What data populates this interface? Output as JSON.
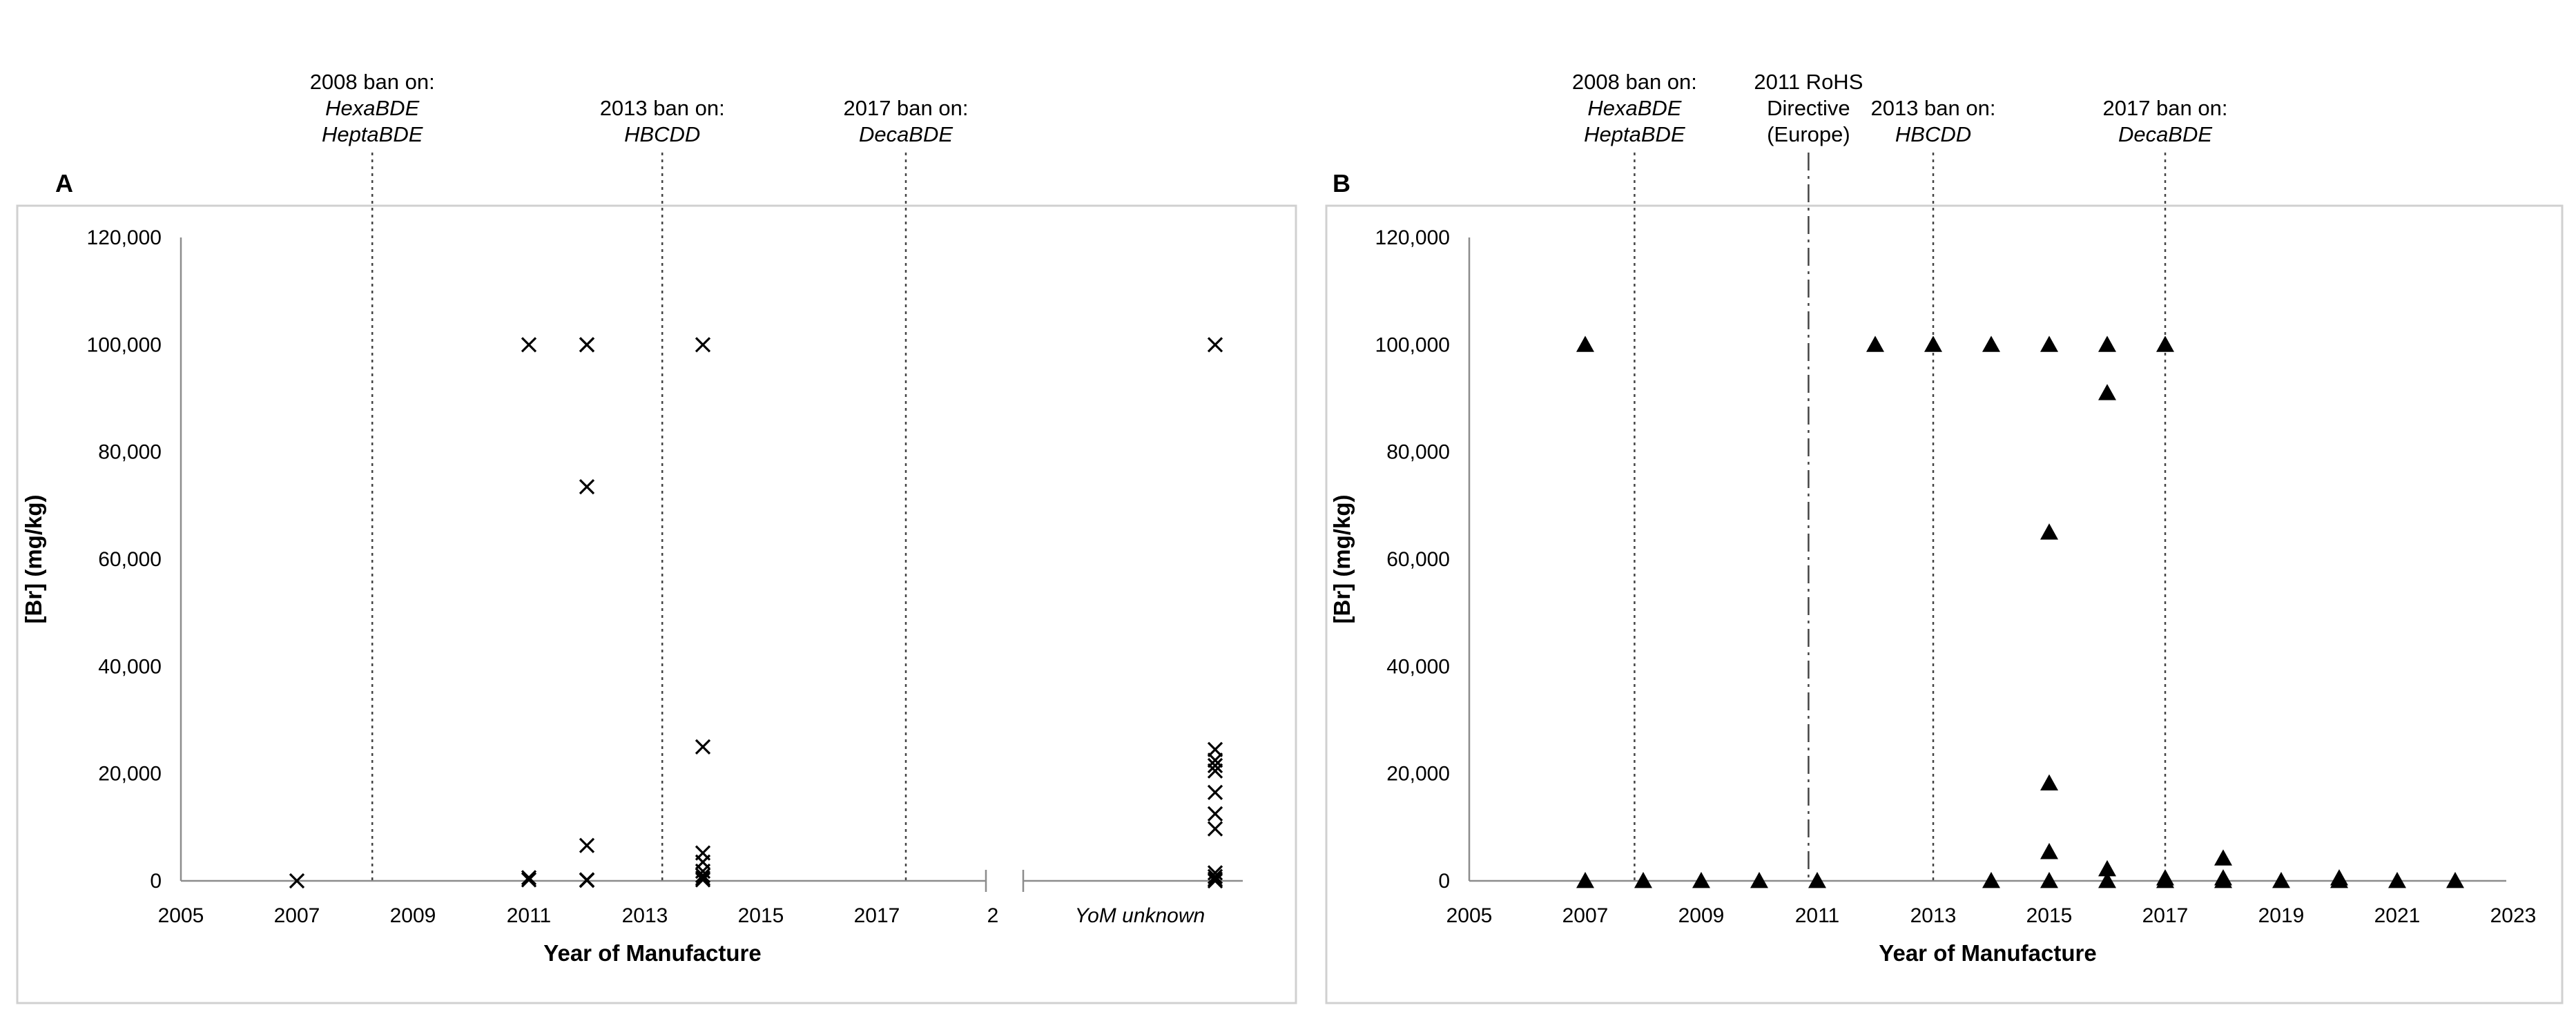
{
  "chart_data": [
    {
      "panel": "A",
      "type": "scatter",
      "xlabel": "Year of Manufacture",
      "ylabel": "[Br] (mg/kg)",
      "xlim": [
        2005,
        2019
      ],
      "ylim": [
        0,
        120000
      ],
      "x_ticks": [
        "2005",
        "2007",
        "2009",
        "2011",
        "2013",
        "2015",
        "2017",
        "2"
      ],
      "y_ticks": [
        "0",
        "20,000",
        "40,000",
        "60,000",
        "80,000",
        "100,000",
        "120,000"
      ],
      "marker": "x",
      "grid": false,
      "annotations": [
        {
          "x": 2008.3,
          "style": "dotted",
          "heading": "2008 ban on:",
          "items": [
            "HexaBDE",
            "HeptaBDE"
          ]
        },
        {
          "x": 2013.3,
          "style": "dotted",
          "heading": "2013 ban on:",
          "items": [
            "HBCDD"
          ]
        },
        {
          "x": 2017.5,
          "style": "dotted",
          "heading": "2017 ban on:",
          "items": [
            "DecaBDE"
          ]
        }
      ],
      "points": [
        {
          "x": 2007,
          "y": 0
        },
        {
          "x": 2011,
          "y": 100000
        },
        {
          "x": 2011,
          "y": 600
        },
        {
          "x": 2011,
          "y": 200
        },
        {
          "x": 2012,
          "y": 100000
        },
        {
          "x": 2012,
          "y": 100000
        },
        {
          "x": 2012,
          "y": 73500
        },
        {
          "x": 2012,
          "y": 6600
        },
        {
          "x": 2012,
          "y": 200
        },
        {
          "x": 2012,
          "y": 100
        },
        {
          "x": 2014,
          "y": 100000
        },
        {
          "x": 2014,
          "y": 25000
        },
        {
          "x": 2014,
          "y": 5200
        },
        {
          "x": 2014,
          "y": 3500
        },
        {
          "x": 2014,
          "y": 1800
        },
        {
          "x": 2014,
          "y": 1000
        },
        {
          "x": 2014,
          "y": 500
        },
        {
          "x": 2014,
          "y": 200
        }
      ],
      "unknown_group": {
        "label": "YoM unknown",
        "values": [
          100000,
          24500,
          22500,
          21500,
          20500,
          16500,
          12500,
          9700,
          1500,
          800,
          300,
          0
        ]
      }
    },
    {
      "panel": "B",
      "type": "scatter",
      "xlabel": "Year of Manufacture",
      "ylabel": "[Br] (mg/kg)",
      "xlim": [
        2005,
        2023
      ],
      "ylim": [
        0,
        120000
      ],
      "x_ticks": [
        "2005",
        "2007",
        "2009",
        "2011",
        "2013",
        "2015",
        "2017",
        "2019",
        "2021",
        "2023"
      ],
      "y_ticks": [
        "0",
        "20,000",
        "40,000",
        "60,000",
        "80,000",
        "100,000",
        "120,000"
      ],
      "marker": "triangle",
      "grid": false,
      "annotations": [
        {
          "x": 2007.85,
          "style": "dotted",
          "heading": "2008 ban on:",
          "items": [
            "HexaBDE",
            "HeptaBDE"
          ]
        },
        {
          "x": 2010.85,
          "style": "dash-dot",
          "heading": "2011 RoHS",
          "lines": [
            "Directive",
            "(Europe)"
          ]
        },
        {
          "x": 2013.0,
          "style": "dotted",
          "heading": "2013 ban on:",
          "items": [
            "HBCDD"
          ]
        },
        {
          "x": 2017.0,
          "style": "dotted",
          "heading": "2017 ban on:",
          "items": [
            "DecaBDE"
          ]
        }
      ],
      "points": [
        {
          "x": 2007,
          "y": 100000
        },
        {
          "x": 2007,
          "y": 0
        },
        {
          "x": 2008,
          "y": 0
        },
        {
          "x": 2009,
          "y": 0
        },
        {
          "x": 2010,
          "y": 0
        },
        {
          "x": 2011,
          "y": 0
        },
        {
          "x": 2012,
          "y": 100000
        },
        {
          "x": 2013,
          "y": 100000
        },
        {
          "x": 2014,
          "y": 100000
        },
        {
          "x": 2014,
          "y": 0
        },
        {
          "x": 2015,
          "y": 100000
        },
        {
          "x": 2015,
          "y": 65000
        },
        {
          "x": 2015,
          "y": 18200
        },
        {
          "x": 2015,
          "y": 5400
        },
        {
          "x": 2015,
          "y": 0
        },
        {
          "x": 2016,
          "y": 100000
        },
        {
          "x": 2016,
          "y": 91000
        },
        {
          "x": 2016,
          "y": 2200
        },
        {
          "x": 2016,
          "y": 0
        },
        {
          "x": 2017,
          "y": 100000
        },
        {
          "x": 2017,
          "y": 500
        },
        {
          "x": 2017,
          "y": 0
        },
        {
          "x": 2018,
          "y": 4200
        },
        {
          "x": 2018,
          "y": 500
        },
        {
          "x": 2018,
          "y": 0
        },
        {
          "x": 2019,
          "y": 0
        },
        {
          "x": 2020,
          "y": 500
        },
        {
          "x": 2020,
          "y": 0
        },
        {
          "x": 2021,
          "y": 0
        },
        {
          "x": 2022,
          "y": 0
        }
      ]
    }
  ]
}
